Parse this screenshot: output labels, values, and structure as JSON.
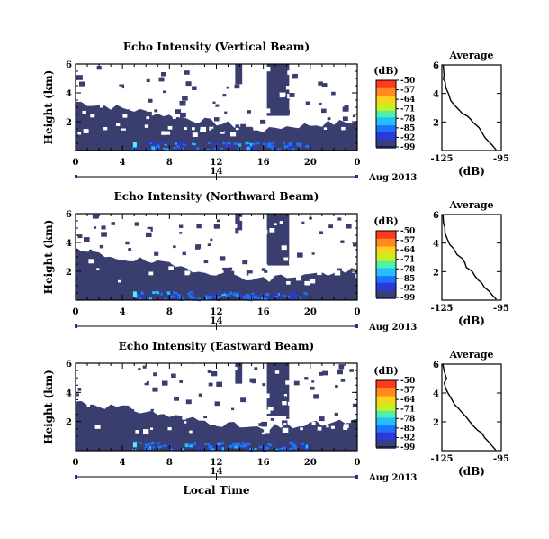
{
  "chart_data": [
    {
      "type": "heatmap",
      "title": "Echo Intensity (Vertical Beam)",
      "ylabel": "Height (km)",
      "xticks": [
        "0",
        "4",
        "8",
        "12",
        "16",
        "20",
        "0"
      ],
      "yticks": [
        "2",
        "4",
        "6"
      ],
      "xlim": [
        0,
        24
      ],
      "ylim": [
        0,
        6
      ],
      "date_day": "14",
      "date_label": "Aug 2013",
      "colorbar_unit": "(dB)",
      "colorbar_ticks": [
        "-50",
        "-57",
        "-64",
        "-71",
        "-78",
        "-85",
        "-92",
        "-99"
      ],
      "colorbar_range": [
        -99,
        -50
      ]
    },
    {
      "type": "line",
      "title": "Average",
      "xlabel": "(dB)",
      "xticks": [
        "-125",
        "-95"
      ],
      "yticks": [
        "2",
        "4",
        "6"
      ],
      "xlim": [
        -125,
        -95
      ],
      "ylim": [
        0,
        6
      ],
      "series": [
        {
          "x": [
            -124.3,
            -123.9,
            -124.2,
            -123.3,
            -123,
            -121.7,
            -120.5,
            -118.1,
            -116,
            -114.7,
            -112,
            -110.5,
            -109.5,
            -106.2,
            -104.5,
            -103.2,
            -101.2,
            -99.7,
            -98.6,
            -97.6
          ],
          "y": [
            6,
            5.3,
            5,
            4.8,
            4.4,
            4,
            3.5,
            3.1,
            2.8,
            2.6,
            2.4,
            2.2,
            2,
            1.6,
            1.2,
            0.9,
            0.6,
            0.4,
            0.2,
            0.05
          ]
        }
      ]
    },
    {
      "type": "heatmap",
      "title": "Echo Intensity (Northward Beam)",
      "ylabel": "Height (km)",
      "xticks": [
        "0",
        "4",
        "8",
        "12",
        "16",
        "20",
        "0"
      ],
      "yticks": [
        "2",
        "4",
        "6"
      ],
      "xlim": [
        0,
        24
      ],
      "ylim": [
        0,
        6
      ],
      "date_day": "14",
      "date_label": "Aug 2013",
      "colorbar_unit": "(dB)",
      "colorbar_ticks": [
        "-50",
        "-57",
        "-64",
        "-71",
        "-78",
        "-85",
        "-92",
        "-99"
      ],
      "colorbar_range": [
        -99,
        -50
      ]
    },
    {
      "type": "line",
      "title": "Average",
      "xlabel": "(dB)",
      "xticks": [
        "-125",
        "-95"
      ],
      "yticks": [
        "2",
        "4",
        "6"
      ],
      "xlim": [
        -125,
        -95
      ],
      "ylim": [
        0,
        6
      ],
      "series": [
        {
          "x": [
            -124.4,
            -124.2,
            -123.5,
            -123.4,
            -122.3,
            -121,
            -119,
            -117.4,
            -114.6,
            -113.3,
            -112.7,
            -109.6,
            -108.3,
            -106.6,
            -104.8,
            -103.5,
            -100.9,
            -99.8,
            -98.5,
            -97.5
          ],
          "y": [
            6,
            5.4,
            5.1,
            4.7,
            4.3,
            3.9,
            3.6,
            3.2,
            2.9,
            2.6,
            2.3,
            2,
            1.7,
            1.4,
            1.2,
            0.9,
            0.6,
            0.4,
            0.2,
            0.05
          ]
        }
      ]
    },
    {
      "type": "heatmap",
      "title": "Echo Intensity (Eastward Beam)",
      "ylabel": "Height (km)",
      "xticks": [
        "0",
        "4",
        "8",
        "12",
        "16",
        "20",
        "0"
      ],
      "yticks": [
        "2",
        "4",
        "6"
      ],
      "xlim": [
        0,
        24
      ],
      "ylim": [
        0,
        6
      ],
      "date_day": "14",
      "date_label": "Aug 2013",
      "xlabel": "Local Time",
      "colorbar_unit": "(dB)",
      "colorbar_ticks": [
        "-50",
        "-57",
        "-64",
        "-71",
        "-78",
        "-85",
        "-92",
        "-99"
      ],
      "colorbar_range": [
        -99,
        -50
      ]
    },
    {
      "type": "line",
      "title": "Average",
      "xlabel": "(dB)",
      "xticks": [
        "-125",
        "-95"
      ],
      "yticks": [
        "2",
        "4",
        "6"
      ],
      "xlim": [
        -125,
        -95
      ],
      "ylim": [
        0,
        6
      ],
      "series": [
        {
          "x": [
            -124.5,
            -123.8,
            -122.6,
            -123.8,
            -123,
            -121.9,
            -120.2,
            -118.6,
            -116.4,
            -114.5,
            -112.5,
            -110.8,
            -109,
            -106.8,
            -104.7,
            -103.4,
            -101.3,
            -100.1,
            -98.8,
            -97.8
          ],
          "y": [
            6,
            5.5,
            5,
            4.7,
            4.3,
            4,
            3.6,
            3.2,
            2.9,
            2.6,
            2.3,
            2,
            1.7,
            1.4,
            1.2,
            0.9,
            0.6,
            0.4,
            0.2,
            0.05
          ]
        }
      ]
    }
  ]
}
